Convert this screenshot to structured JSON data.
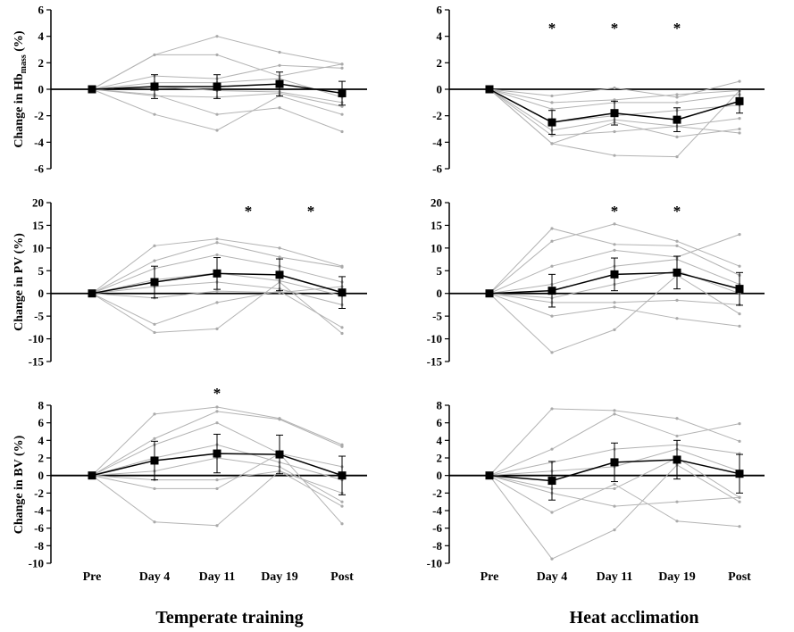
{
  "figure": {
    "categories": [
      "Pre",
      "Day 4",
      "Day 11",
      "Day 19",
      "Post"
    ],
    "columns": [
      {
        "title": "Temperate training"
      },
      {
        "title": "Heat acclimation"
      }
    ],
    "rows": [
      {
        "ylabel_prefix": "Change in  Hb",
        "ylabel_sub": "mass",
        "ylabel_suffix": " (%)",
        "ticks": [
          "6",
          "4",
          "2",
          "0",
          "-2",
          "-4",
          "-6"
        ]
      },
      {
        "ylabel": "Change in PV (%)",
        "ticks": [
          "20",
          "15",
          "10",
          "5",
          "0",
          "-5",
          "-10",
          "-15"
        ]
      },
      {
        "ylabel": "Change in BV (%)",
        "ticks": [
          "8",
          "6",
          "4",
          "2",
          "0",
          "-2",
          "-4",
          "-6",
          "-8",
          "-10"
        ]
      }
    ],
    "star": "*"
  },
  "chart_data": [
    {
      "type": "line",
      "id": "tt-hb",
      "group": "Temperate training",
      "title": "",
      "ylabel": "Change in Hbmass (%)",
      "xlabel": "",
      "categories": [
        "Pre",
        "Day 4",
        "Day 11",
        "Day 19",
        "Post"
      ],
      "ylim": [
        -6,
        6
      ],
      "yticks": [
        -6,
        -4,
        -2,
        0,
        2,
        4,
        6
      ],
      "mean": [
        0,
        0.2,
        0.2,
        0.4,
        -0.3
      ],
      "sd": [
        0,
        0.9,
        0.9,
        0.9,
        0.9
      ],
      "individuals": [
        [
          0,
          2.6,
          4.0,
          2.8,
          1.9
        ],
        [
          0,
          2.6,
          2.6,
          1.0,
          1.9
        ],
        [
          0,
          1.0,
          0.8,
          1.8,
          1.6
        ],
        [
          0,
          0.5,
          0.5,
          0.8,
          -0.6
        ],
        [
          0,
          0.2,
          -0.1,
          -0.2,
          -1.0
        ],
        [
          0,
          -0.5,
          -0.6,
          -0.3,
          -1.3
        ],
        [
          0,
          -0.4,
          -1.9,
          -1.4,
          -3.2
        ],
        [
          0,
          -1.9,
          -3.1,
          -0.5,
          -1.9
        ]
      ],
      "significant": []
    },
    {
      "type": "line",
      "id": "ha-hb",
      "group": "Heat acclimation",
      "title": "",
      "ylabel": "",
      "xlabel": "",
      "categories": [
        "Pre",
        "Day 4",
        "Day 11",
        "Day 19",
        "Post"
      ],
      "ylim": [
        -6,
        6
      ],
      "yticks": [
        -6,
        -4,
        -2,
        0,
        2,
        4,
        6
      ],
      "mean": [
        0,
        -2.5,
        -1.8,
        -2.3,
        -0.9
      ],
      "sd": [
        0,
        0.9,
        0.9,
        0.9,
        0.9
      ],
      "individuals": [
        [
          0,
          -0.5,
          0.1,
          -0.6,
          0.6
        ],
        [
          0,
          -1.0,
          -0.8,
          -0.4,
          -0.1
        ],
        [
          0,
          -1.5,
          -1.0,
          -1.0,
          -0.4
        ],
        [
          0,
          -2.5,
          -2.0,
          -1.6,
          -1.2
        ],
        [
          0,
          -3.5,
          -3.2,
          -2.8,
          -2.2
        ],
        [
          0,
          -4.1,
          -2.5,
          -3.6,
          -3.0
        ],
        [
          0,
          -4.1,
          -5.0,
          -5.1,
          -0.1
        ],
        [
          0,
          -3.1,
          -2.3,
          -2.8,
          -3.3
        ]
      ],
      "significant": [
        "Day 4",
        "Day 11",
        "Day 19"
      ]
    },
    {
      "type": "line",
      "id": "tt-pv",
      "group": "Temperate training",
      "title": "",
      "ylabel": "Change in PV (%)",
      "xlabel": "",
      "categories": [
        "Pre",
        "Day 4",
        "Day 11",
        "Day 19",
        "Post"
      ],
      "ylim": [
        -15,
        20
      ],
      "yticks": [
        -15,
        -10,
        -5,
        0,
        5,
        10,
        15,
        20
      ],
      "mean": [
        0,
        2.5,
        4.4,
        4.1,
        0.2
      ],
      "sd": [
        0,
        3.5,
        3.5,
        3.5,
        3.5
      ],
      "individuals": [
        [
          0,
          10.5,
          12.0,
          10.0,
          6.0
        ],
        [
          0,
          7.2,
          11.2,
          8.0,
          5.8
        ],
        [
          0,
          5.5,
          8.5,
          6.0,
          2.5
        ],
        [
          0,
          3.0,
          4.5,
          2.8,
          -0.5
        ],
        [
          0,
          1.5,
          2.5,
          1.0,
          -2.5
        ],
        [
          0,
          -1.0,
          0.5,
          0.2,
          1.5
        ],
        [
          0,
          -6.8,
          -2.0,
          0.5,
          -7.5
        ],
        [
          0,
          -8.6,
          -7.8,
          2.5,
          -8.8
        ]
      ],
      "significant": [
        "Day 11 to Day 19",
        "Day 19 to Post"
      ]
    },
    {
      "type": "line",
      "id": "ha-pv",
      "group": "Heat acclimation",
      "title": "",
      "ylabel": "",
      "xlabel": "",
      "categories": [
        "Pre",
        "Day 4",
        "Day 11",
        "Day 19",
        "Post"
      ],
      "ylim": [
        -15,
        20
      ],
      "yticks": [
        -15,
        -10,
        -5,
        0,
        5,
        10,
        15,
        20
      ],
      "mean": [
        0,
        0.6,
        4.2,
        4.6,
        1.0
      ],
      "sd": [
        0,
        3.6,
        3.6,
        3.6,
        3.6
      ],
      "individuals": [
        [
          0,
          14.3,
          10.8,
          10.5,
          4.0
        ],
        [
          0,
          11.5,
          15.3,
          11.5,
          6.0
        ],
        [
          0,
          6.0,
          9.5,
          8.0,
          13.0
        ],
        [
          0,
          2.0,
          6.0,
          7.5,
          2.0
        ],
        [
          0,
          -1.0,
          2.0,
          5.0,
          0.0
        ],
        [
          0,
          -2.0,
          -2.0,
          -1.5,
          -2.5
        ],
        [
          0,
          -5.0,
          -3.0,
          -5.5,
          -7.2
        ],
        [
          0,
          -13.0,
          -8.0,
          4.0,
          -4.5
        ]
      ],
      "significant": [
        "Day 11",
        "Day 19"
      ]
    },
    {
      "type": "line",
      "id": "tt-bv",
      "group": "Temperate training",
      "title": "",
      "ylabel": "Change in BV (%)",
      "xlabel": "",
      "categories": [
        "Pre",
        "Day 4",
        "Day 11",
        "Day 19",
        "Post"
      ],
      "ylim": [
        -10,
        8
      ],
      "yticks": [
        -10,
        -8,
        -6,
        -4,
        -2,
        0,
        2,
        4,
        6,
        8
      ],
      "mean": [
        0,
        1.7,
        2.5,
        2.4,
        0
      ],
      "sd": [
        0,
        2.2,
        2.2,
        2.2,
        2.2
      ],
      "individuals": [
        [
          0,
          7.0,
          7.8,
          6.5,
          3.5
        ],
        [
          0,
          4.2,
          7.3,
          6.4,
          3.3
        ],
        [
          0,
          3.5,
          6.0,
          2.5,
          1.0
        ],
        [
          0,
          2.0,
          3.5,
          1.5,
          -0.5
        ],
        [
          0,
          0.5,
          2.0,
          1.0,
          -3.0
        ],
        [
          0,
          -0.5,
          -0.5,
          0.5,
          -2.0
        ],
        [
          0,
          -1.5,
          -1.5,
          2.5,
          -5.5
        ],
        [
          0,
          -5.3,
          -5.7,
          0.5,
          -3.5
        ]
      ],
      "significant": [
        "Day 11"
      ]
    },
    {
      "type": "line",
      "id": "ha-bv",
      "group": "Heat acclimation",
      "title": "",
      "ylabel": "",
      "xlabel": "",
      "categories": [
        "Pre",
        "Day 4",
        "Day 11",
        "Day 19",
        "Post"
      ],
      "ylim": [
        -10,
        8
      ],
      "yticks": [
        -10,
        -8,
        -6,
        -4,
        -2,
        0,
        2,
        4,
        6,
        8
      ],
      "mean": [
        0,
        -0.6,
        1.5,
        1.8,
        0.2
      ],
      "sd": [
        0,
        2.2,
        2.2,
        2.2,
        2.2
      ],
      "individuals": [
        [
          0,
          7.6,
          7.4,
          6.5,
          3.9
        ],
        [
          0,
          3.0,
          7.0,
          4.5,
          5.9
        ],
        [
          0,
          1.5,
          3.0,
          3.5,
          2.5
        ],
        [
          0,
          0.5,
          1.0,
          3.0,
          0.5
        ],
        [
          0,
          -1.5,
          -1.5,
          2.0,
          -2.5
        ],
        [
          0,
          -2.0,
          -3.5,
          -3.0,
          -2.5
        ],
        [
          0,
          -4.2,
          -1.0,
          -5.2,
          -5.8
        ],
        [
          0,
          -9.5,
          -6.2,
          1.2,
          -3.0
        ]
      ],
      "significant": []
    }
  ]
}
